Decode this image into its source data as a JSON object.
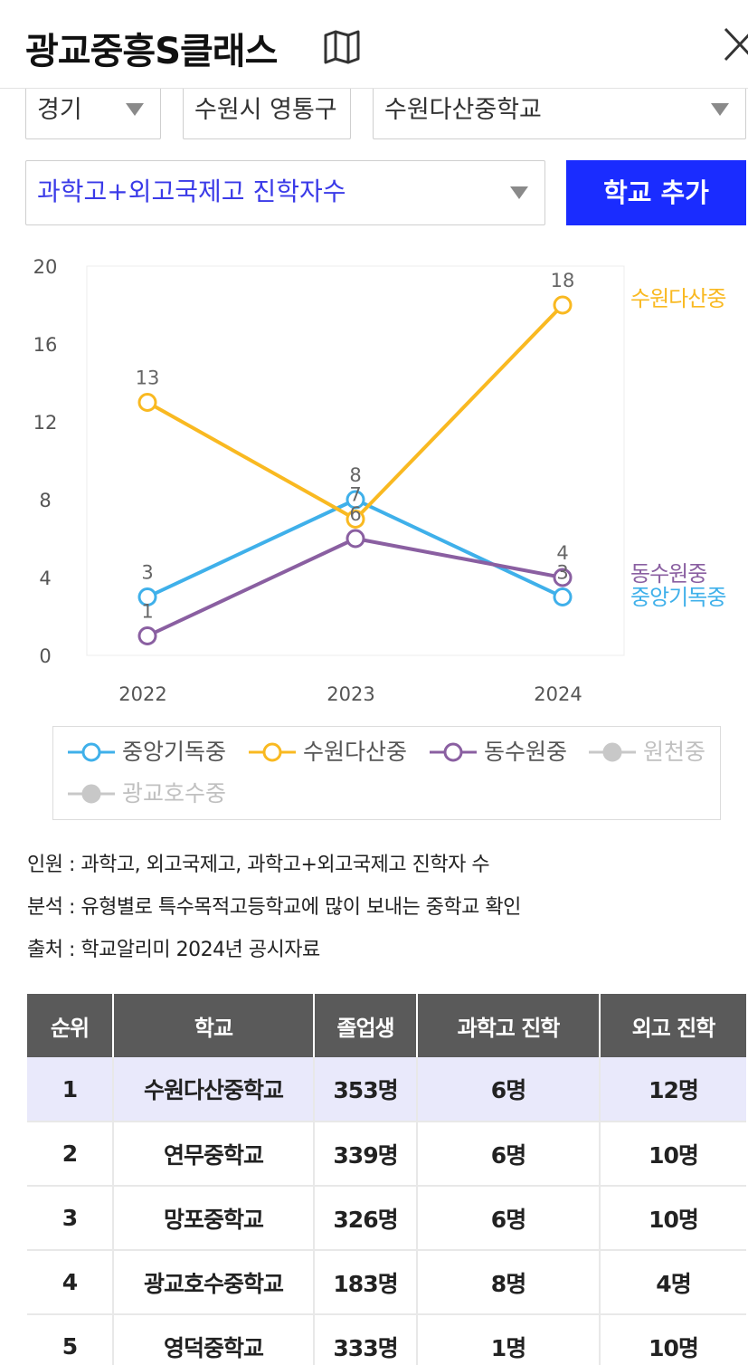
{
  "header": {
    "title": "광교중흥S클래스"
  },
  "filters": {
    "province": "경기",
    "district": "수원시 영통구",
    "school": "수원다산중학교",
    "metric": "과학고+외고국제고 진학자수",
    "add_button": "학교 추가"
  },
  "colors": {
    "blue": "#3fb0ea",
    "orange": "#f9b921",
    "purple": "#8a5fa1",
    "gray": "#c8c8c8",
    "button": "#1a2cff"
  },
  "chart_data": {
    "type": "line",
    "x": [
      "2022",
      "2023",
      "2024"
    ],
    "ylim": [
      0,
      20
    ],
    "yticks": [
      0,
      4,
      8,
      12,
      16,
      20
    ],
    "series": [
      {
        "name": "중앙기독중",
        "color": "#3fb0ea",
        "values": [
          3,
          8,
          3
        ],
        "labels": [
          "3",
          "8",
          "3"
        ],
        "end_label": "중앙기독중"
      },
      {
        "name": "수원다산중",
        "color": "#f9b921",
        "values": [
          13,
          7,
          18
        ],
        "labels": [
          "13",
          "7",
          "18"
        ],
        "end_label": "수원다산중"
      },
      {
        "name": "동수원중",
        "color": "#8a5fa1",
        "values": [
          1,
          6,
          4
        ],
        "labels": [
          "1",
          "6",
          "4"
        ],
        "end_label": "동수원중"
      }
    ],
    "legend": [
      {
        "name": "중앙기독중",
        "color": "#3fb0ea",
        "active": true
      },
      {
        "name": "수원다산중",
        "color": "#f9b921",
        "active": true
      },
      {
        "name": "동수원중",
        "color": "#8a5fa1",
        "active": true
      },
      {
        "name": "원천중",
        "color": "#c8c8c8",
        "active": false
      },
      {
        "name": "광교호수중",
        "color": "#c8c8c8",
        "active": false
      }
    ]
  },
  "notes": {
    "line1": "인원 : 과학고, 외고국제고, 과학고+외고국제고 진학자 수",
    "line2": "분석 : 유형별로 특수목적고등학교에 많이 보내는 중학교 확인",
    "line3": "출처 : 학교알리미 2024년 공시자료"
  },
  "table": {
    "headers": [
      "순위",
      "학교",
      "졸업생",
      "과학고 진학",
      "외고 진학"
    ],
    "rows": [
      [
        "1",
        "수원다산중학교",
        "353명",
        "6명",
        "12명"
      ],
      [
        "2",
        "연무중학교",
        "339명",
        "6명",
        "10명"
      ],
      [
        "3",
        "망포중학교",
        "326명",
        "6명",
        "10명"
      ],
      [
        "4",
        "광교호수중학교",
        "183명",
        "8명",
        "4명"
      ],
      [
        "5",
        "영덕중학교",
        "333명",
        "1명",
        "10명"
      ]
    ]
  }
}
